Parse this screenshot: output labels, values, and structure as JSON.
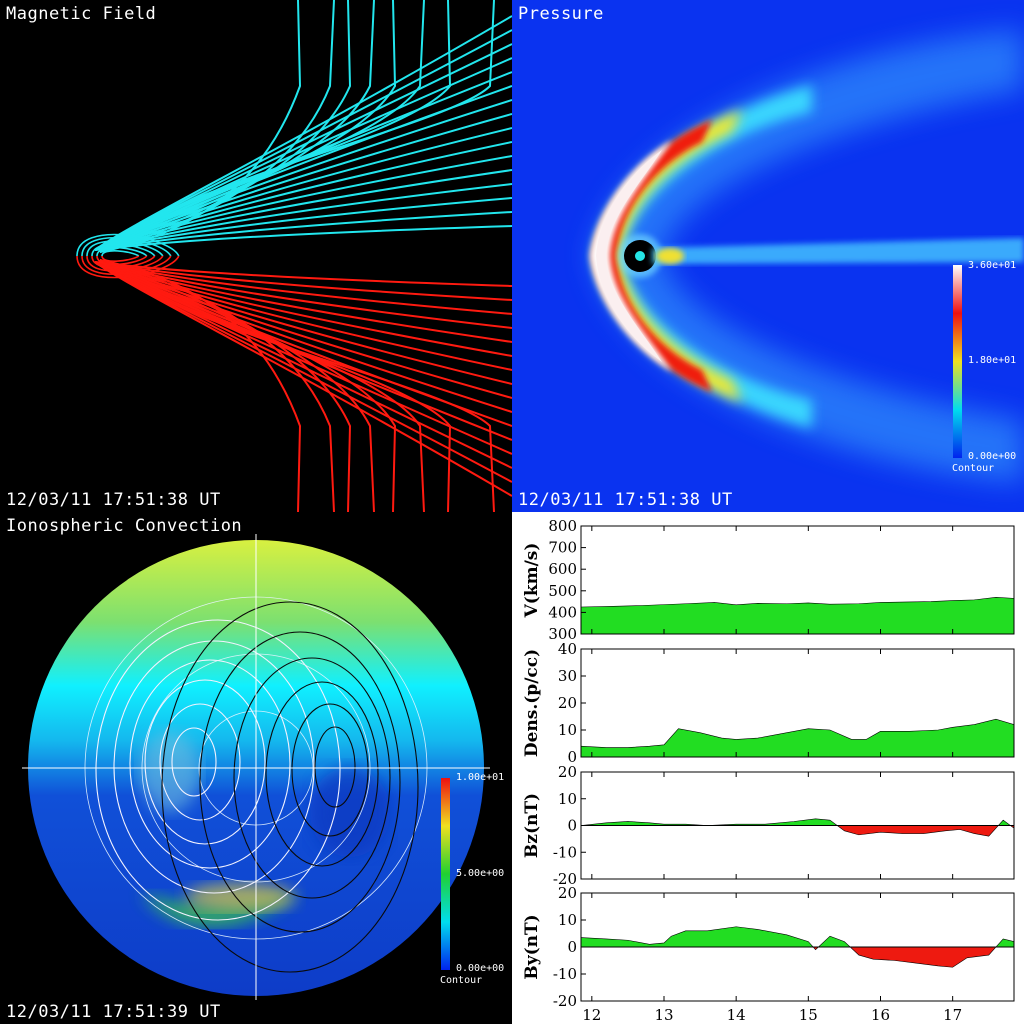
{
  "panels": {
    "magnetic": {
      "title": "Magnetic Field",
      "timestamp": "12/03/11 17:51:38 UT",
      "colors": {
        "north": "#22e6ee",
        "south": "#ff1a10"
      }
    },
    "pressure": {
      "title": "Pressure",
      "timestamp": "12/03/11 17:51:38 UT",
      "colorbar": {
        "max": "3.60e+01",
        "mid": "1.80e+01",
        "min": "0.00e+00",
        "label": "Contour"
      }
    },
    "ionosphere": {
      "title": "Ionospheric Convection",
      "timestamp": "12/03/11 17:51:39 UT",
      "colorbar": {
        "max": "1.00e+01",
        "mid": "5.00e+00",
        "min": "0.00e+00",
        "label": "Contour"
      }
    }
  },
  "timeseries": {
    "x_ticks": [
      "12",
      "13",
      "14",
      "15",
      "16",
      "17"
    ],
    "plots": [
      {
        "ylabel": "V(km/s)",
        "ticks": [
          "800",
          "700",
          "600",
          "500",
          "400",
          "300"
        ]
      },
      {
        "ylabel": "Dens.(p/cc)",
        "ticks": [
          "40",
          "30",
          "20",
          "10",
          "0"
        ]
      },
      {
        "ylabel": "Bz(nT)",
        "ticks": [
          "20",
          "10",
          "0",
          "-10",
          "-20"
        ]
      },
      {
        "ylabel": "By(nT)",
        "ticks": [
          "20",
          "10",
          "0",
          "-10",
          "-20"
        ]
      }
    ]
  },
  "chart_data": [
    {
      "type": "area",
      "ylabel": "V(km/s)",
      "ylim": [
        300,
        800
      ],
      "xlim": [
        11.85,
        17.85
      ],
      "x": [
        11.85,
        12.3,
        12.7,
        13.0,
        13.3,
        13.7,
        14.0,
        14.3,
        14.7,
        15.0,
        15.3,
        15.7,
        16.0,
        16.3,
        16.7,
        17.0,
        17.3,
        17.6,
        17.85
      ],
      "values": [
        425,
        428,
        432,
        436,
        440,
        446,
        435,
        442,
        440,
        444,
        438,
        440,
        446,
        448,
        450,
        455,
        458,
        470,
        465
      ]
    },
    {
      "type": "area",
      "ylabel": "Dens.(p/cc)",
      "ylim": [
        0,
        40
      ],
      "xlim": [
        11.85,
        17.85
      ],
      "x": [
        11.85,
        12.2,
        12.5,
        12.8,
        13.0,
        13.2,
        13.5,
        13.8,
        14.0,
        14.3,
        14.6,
        15.0,
        15.3,
        15.6,
        15.8,
        16.0,
        16.4,
        16.8,
        17.0,
        17.3,
        17.6,
        17.85
      ],
      "values": [
        4,
        3.5,
        3.5,
        4,
        4.5,
        10.5,
        9,
        7,
        6.5,
        7,
        8.5,
        10.5,
        10,
        6.5,
        6.5,
        9.5,
        9.5,
        10,
        11,
        12,
        14,
        12
      ]
    },
    {
      "type": "area",
      "ylabel": "Bz(nT)",
      "ylim": [
        -20,
        20
      ],
      "xlim": [
        11.85,
        17.85
      ],
      "x": [
        11.85,
        12.2,
        12.5,
        12.8,
        13.0,
        13.3,
        13.6,
        14.0,
        14.4,
        14.8,
        15.1,
        15.3,
        15.5,
        15.7,
        16.0,
        16.3,
        16.6,
        16.9,
        17.1,
        17.3,
        17.5,
        17.7,
        17.85
      ],
      "values": [
        0,
        1,
        1.5,
        1,
        0.5,
        0.5,
        0,
        0.5,
        0.5,
        1.5,
        2.5,
        2,
        -2,
        -3.5,
        -2.5,
        -3,
        -3,
        -2,
        -1.5,
        -3,
        -4,
        2,
        -1
      ]
    },
    {
      "type": "area",
      "ylabel": "By(nT)",
      "ylim": [
        -20,
        20
      ],
      "xlim": [
        11.85,
        17.85
      ],
      "x": [
        11.85,
        12.2,
        12.5,
        12.8,
        13.0,
        13.1,
        13.3,
        13.6,
        14.0,
        14.3,
        14.7,
        15.0,
        15.1,
        15.3,
        15.5,
        15.7,
        15.9,
        16.2,
        16.5,
        16.8,
        17.0,
        17.2,
        17.5,
        17.7,
        17.85
      ],
      "values": [
        3.5,
        3,
        2.5,
        1,
        1.5,
        4,
        6,
        6,
        7.5,
        6.5,
        4.5,
        2,
        -1,
        4,
        2,
        -3,
        -4.5,
        -5,
        -6,
        -7,
        -7.5,
        -4,
        -3,
        3,
        2
      ]
    }
  ]
}
